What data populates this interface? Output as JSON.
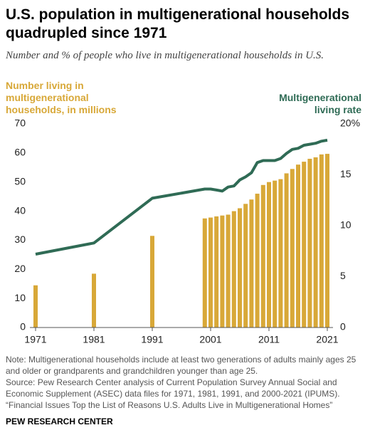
{
  "chart_data": {
    "type": "bar-line",
    "title": "U.S. population in multigenerational households quadrupled since 1971",
    "subtitle": "Number and % of people who live in multigenerational households in U.S.",
    "x": [
      1971,
      1981,
      1991,
      2000,
      2001,
      2002,
      2003,
      2004,
      2005,
      2006,
      2007,
      2008,
      2009,
      2010,
      2011,
      2012,
      2013,
      2014,
      2015,
      2016,
      2017,
      2018,
      2019,
      2020,
      2021
    ],
    "xlim": [
      1970,
      2022
    ],
    "xticks": [
      1971,
      1981,
      1991,
      2001,
      2011,
      2021
    ],
    "ylim": [
      0,
      70
    ],
    "yticks": [
      0,
      10,
      20,
      30,
      40,
      50,
      60,
      70
    ],
    "y2lim": [
      0,
      20
    ],
    "y2ticks": [
      0,
      5,
      10,
      15,
      {
        "value": 20,
        "label": "20%"
      }
    ],
    "grid": false,
    "series": [
      {
        "name": "Number living in multigenerational households, in millions",
        "type": "bar",
        "color": "#d8a838",
        "values": [
          14.5,
          18.5,
          31.5,
          37.5,
          37.8,
          38.2,
          38.5,
          38.8,
          40,
          41,
          42.5,
          44,
          46,
          49,
          50,
          50.5,
          51,
          53,
          54.5,
          56,
          57,
          58,
          58.5,
          59.5,
          59.7
        ]
      },
      {
        "name": "Multigenerational living rate",
        "type": "line",
        "axis": "y2",
        "color": "#2f6b55",
        "values": [
          7.2,
          8.3,
          12.7,
          13.6,
          13.6,
          13.5,
          13.4,
          13.8,
          13.9,
          14.5,
          14.8,
          15.2,
          16.2,
          16.4,
          16.4,
          16.4,
          16.6,
          17.1,
          17.5,
          17.6,
          17.9,
          18.0,
          18.1,
          18.3,
          18.4
        ]
      }
    ],
    "notes": [
      "Note: Multigenerational households include at least two generations of adults mainly ages 25 and older or grandparents and grandchildren younger than age 25.",
      "Source: Pew Research Center analysis of Current Population Survey Annual Social and Economic Supplement (ASEC) data files for 1971, 1981, 1991, and 2000-2021 (IPUMS).",
      "“Financial Issues Top the List of Reasons U.S. Adults Live in Multigenerational Homes”"
    ],
    "footer": "PEW RESEARCH CENTER"
  }
}
